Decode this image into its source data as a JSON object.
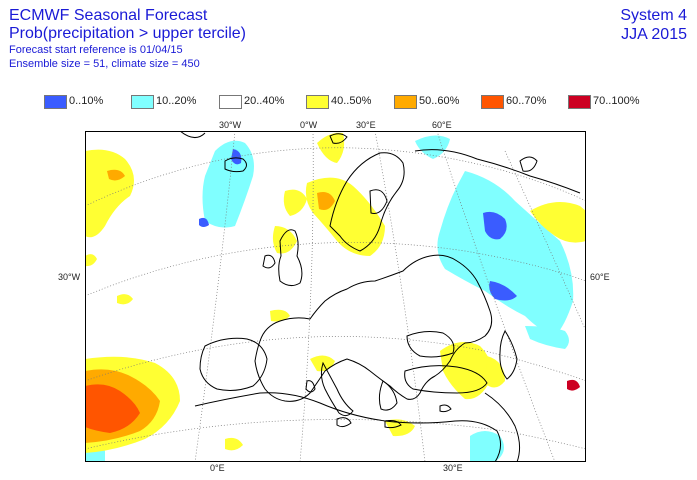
{
  "header": {
    "title": "ECMWF Seasonal Forecast",
    "subtitle": "Prob(precipitation > upper tercile)",
    "start_ref": "Forecast start reference is 01/04/15",
    "ensemble": "Ensemble size = 51, climate size = 450",
    "system": "System 4",
    "period": "JJA 2015"
  },
  "legend": [
    {
      "label": "0..10%",
      "color": "#3a5cff"
    },
    {
      "label": "10..20%",
      "color": "#80ffff"
    },
    {
      "label": "20..40%",
      "color": "#ffffff"
    },
    {
      "label": "40..50%",
      "color": "#ffff33"
    },
    {
      "label": "50..60%",
      "color": "#ffaa00"
    },
    {
      "label": "60..70%",
      "color": "#ff5500"
    },
    {
      "label": "70..100%",
      "color": "#cc0022"
    }
  ],
  "axis_labels": {
    "top": [
      "30°W",
      "0°W",
      "30°E",
      "60°E"
    ],
    "bottom": [
      "0°E",
      "30°E"
    ],
    "left": "30°W",
    "right": "60°E"
  }
}
